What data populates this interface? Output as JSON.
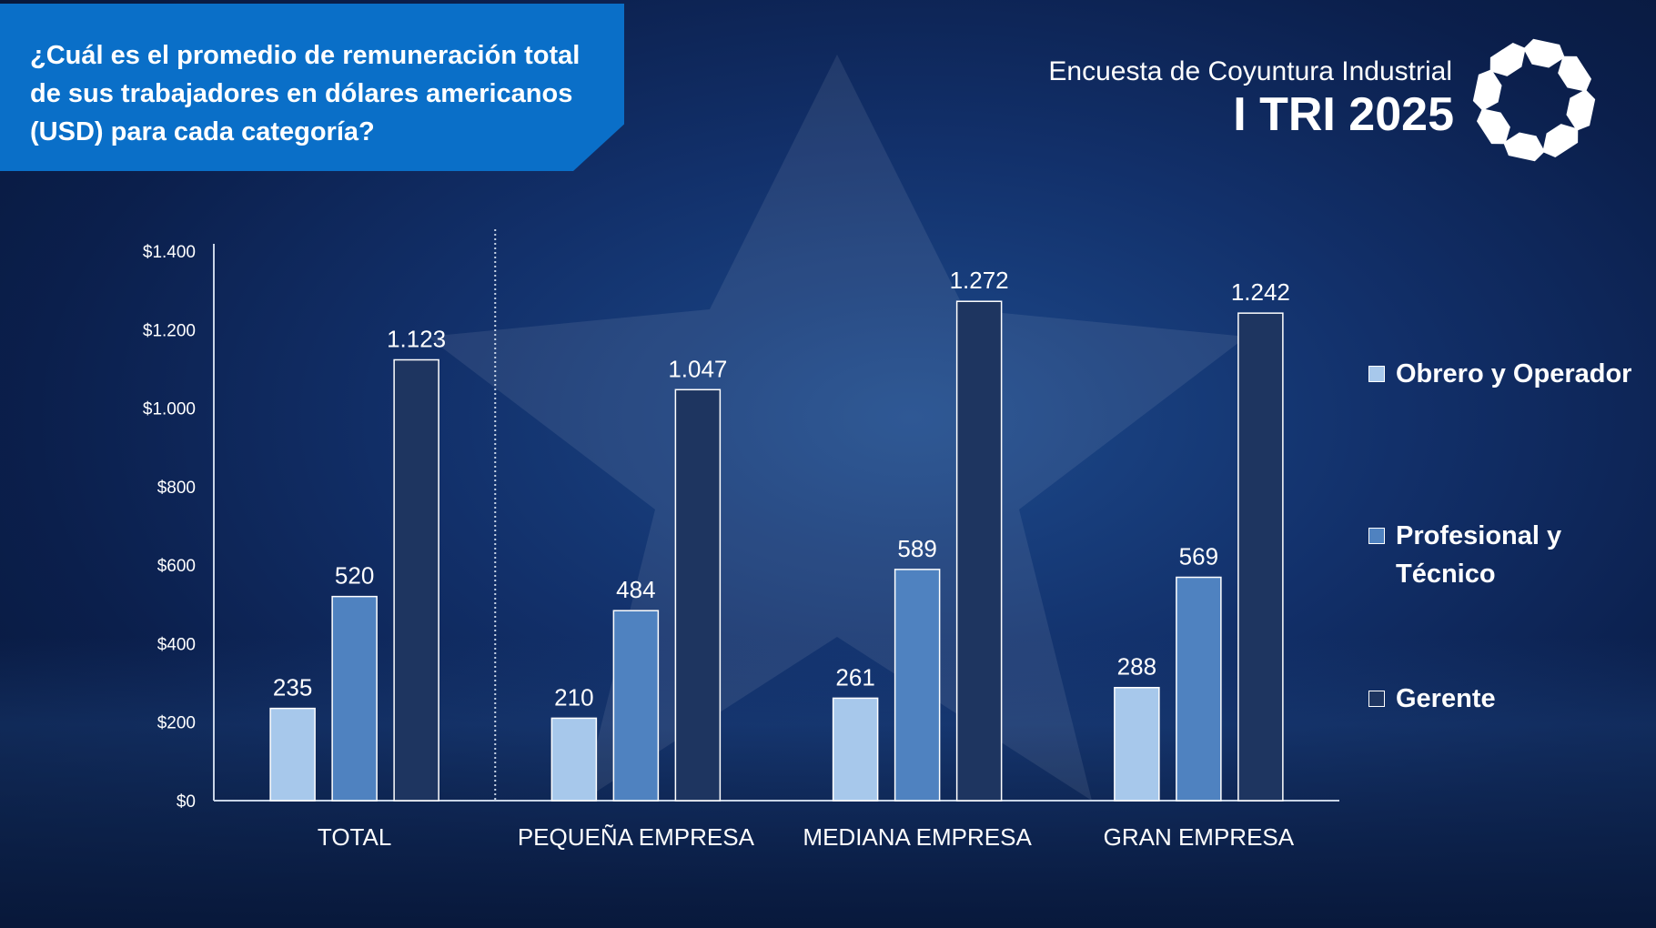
{
  "title": "¿Cuál es el promedio de remuneración total de sus trabajadores en dólares americanos (USD) para cada categoría?",
  "header": {
    "survey_name": "Encuesta de Coyuntura Industrial",
    "period": "I TRI 2025",
    "logo_icon": "ring-of-arrows-logo-icon"
  },
  "colors": {
    "obrero": "#a7c8eb",
    "profesional": "#4f82c0",
    "gerente": "#1e3560",
    "banner": "#0a6fc8"
  },
  "chart_data": {
    "type": "bar",
    "categories": [
      "TOTAL",
      "PEQUEÑA EMPRESA",
      "MEDIANA EMPRESA",
      "GRAN EMPRESA"
    ],
    "series": [
      {
        "name": "Obrero y Operador",
        "values": [
          235,
          210,
          261,
          288
        ],
        "labels": [
          "235",
          "210",
          "261",
          "288"
        ]
      },
      {
        "name": "Profesional y Técnico",
        "values": [
          520,
          484,
          589,
          569
        ],
        "labels": [
          "520",
          "484",
          "589",
          "569"
        ]
      },
      {
        "name": "Gerente",
        "values": [
          1123,
          1047,
          1272,
          1242
        ],
        "labels": [
          "1.123",
          "1.047",
          "1.272",
          "1.242"
        ]
      }
    ],
    "ylim": [
      0,
      1400
    ],
    "yticks": [
      0,
      200,
      400,
      600,
      800,
      1000,
      1200,
      1400
    ],
    "ytick_labels": [
      "$0",
      "$200",
      "$400",
      "$600",
      "$800",
      "$1.000",
      "$1.200",
      "$1.400"
    ],
    "legend_position": "right",
    "grid": false
  }
}
